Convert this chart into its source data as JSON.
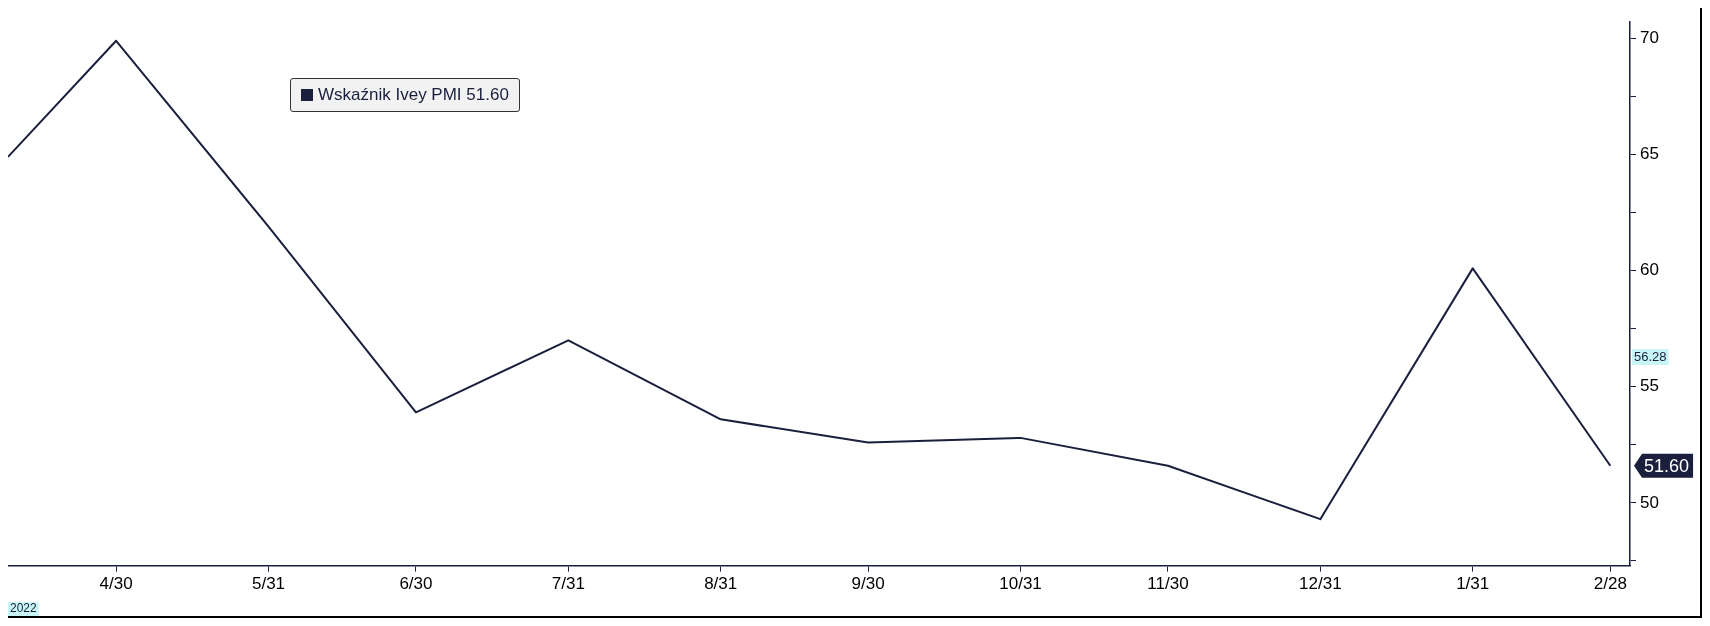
{
  "chart_data": {
    "type": "line",
    "x": [
      "2022-04-08",
      "2022-04-30",
      "2022-05-31",
      "2022-06-30",
      "2022-07-31",
      "2022-08-31",
      "2022-09-30",
      "2022-10-31",
      "2022-11-30",
      "2022-12-31",
      "2023-01-31",
      "2023-02-28"
    ],
    "series": [
      {
        "name": "Wskaźnik Ivey PMI 51.60",
        "color": "#1a1f3d",
        "values": [
          64.9,
          69.9,
          61.9,
          53.9,
          57.0,
          53.6,
          52.6,
          52.8,
          51.6,
          49.3,
          60.1,
          51.6
        ],
        "value_labels": [
          null,
          null,
          null,
          null,
          null,
          null,
          null,
          null,
          null,
          null,
          null,
          "51.60"
        ]
      }
    ],
    "xlim": [
      "2022-04-08",
      "2023-03-04"
    ],
    "xticks": [
      {
        "value": "2022-04-30",
        "label": "4/30"
      },
      {
        "value": "2022-05-31",
        "label": "5/31"
      },
      {
        "value": "2022-06-30",
        "label": "6/30"
      },
      {
        "value": "2022-07-31",
        "label": "7/31"
      },
      {
        "value": "2022-08-31",
        "label": "8/31"
      },
      {
        "value": "2022-09-30",
        "label": "9/30"
      },
      {
        "value": "2022-10-31",
        "label": "10/31"
      },
      {
        "value": "2022-11-30",
        "label": "11/30"
      },
      {
        "value": "2022-12-31",
        "label": "12/31"
      },
      {
        "value": "2023-01-31",
        "label": "1/31"
      },
      {
        "value": "2023-02-28",
        "label": "2/28"
      }
    ],
    "ylim": [
      47.3,
      70.7
    ],
    "yticks": [
      {
        "value": 47.5,
        "label": null
      },
      50,
      {
        "value": 52.5,
        "label": null
      },
      55,
      {
        "value": 57.5,
        "label": null
      },
      60,
      {
        "value": 62.5,
        "label": null
      },
      65,
      {
        "value": 67.5,
        "label": null
      },
      70
    ],
    "annotations": [
      "2022",
      {
        "text": "56.28",
        "y": 56.28
      }
    ],
    "legend": "top left",
    "grid": false,
    "marker": "none",
    "line_style": "solid"
  }
}
